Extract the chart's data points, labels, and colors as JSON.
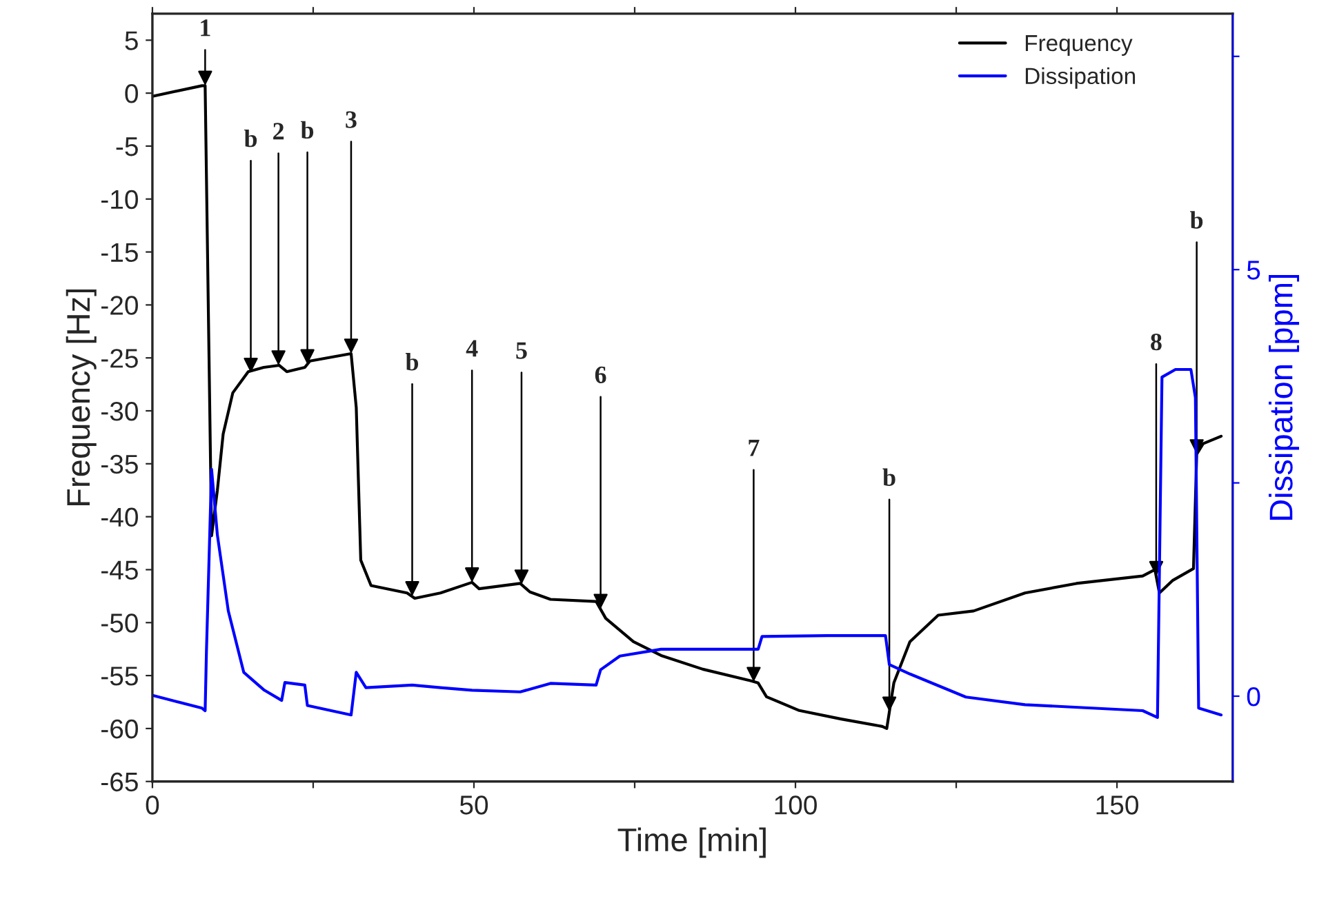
{
  "chart_data": {
    "type": "line",
    "xlabel": "Time [min]",
    "ylabel": "Frequency [Hz]",
    "y2label": "Dissipation [ppm]",
    "xlim": [
      0,
      168
    ],
    "xticks": [
      0,
      {
        "value": 25,
        "label": null
      },
      50,
      {
        "value": 75,
        "label": null
      },
      100,
      {
        "value": 125,
        "label": null
      },
      150
    ],
    "ylim": [
      -65,
      7.5
    ],
    "yticks": [
      -65,
      -60,
      -55,
      -50,
      -45,
      -40,
      -35,
      -30,
      -25,
      -20,
      -15,
      -10,
      -5,
      0,
      5
    ],
    "y2lim": [
      -1,
      8
    ],
    "y2ticks": [
      0,
      {
        "value": 2.5,
        "label": null
      },
      5,
      {
        "value": 7.5,
        "label": null
      }
    ],
    "legend": "top right",
    "grid": false,
    "series": [
      {
        "name": "Frequency",
        "color": "#000000",
        "x": [
          0,
          7.7,
          8.2,
          9.2,
          10.1,
          11,
          12.5,
          14.9,
          17.3,
          19.7,
          20.9,
          23.7,
          24.5,
          30.9,
          31.7,
          32.4,
          34,
          39.6,
          40.8,
          44.8,
          49.7,
          50.8,
          57.2,
          58.7,
          61.9,
          69,
          70.5,
          74.8,
          79.1,
          85.6,
          93.1,
          94.2,
          95.5,
          100.6,
          107.1,
          113.5,
          114.2,
          115.3,
          117.8,
          122.2,
          127.7,
          135.7,
          143.7,
          154,
          155.9,
          156.6,
          158.7,
          161.9,
          162.4,
          163.4,
          166.2
        ],
        "values": [
          -0.3,
          0.7,
          0.7,
          -41.8,
          -37.5,
          -32.2,
          -28.3,
          -26.3,
          -25.9,
          -25.7,
          -26.3,
          -25.9,
          -25.3,
          -24.6,
          -29.7,
          -44.1,
          -46.5,
          -47.2,
          -47.7,
          -47.2,
          -46.2,
          -46.8,
          -46.3,
          -47.1,
          -47.8,
          -48.0,
          -49.6,
          -51.8,
          -53.1,
          -54.4,
          -55.5,
          -55.7,
          -57.0,
          -58.3,
          -59.1,
          -59.8,
          -60.0,
          -55.7,
          -51.8,
          -49.3,
          -48.9,
          -47.2,
          -46.3,
          -45.6,
          -45.0,
          -47.2,
          -46.0,
          -44.9,
          -34.1,
          -33.1,
          -32.4
        ]
      },
      {
        "name": "Dissipation",
        "color": "#0000ff",
        "axis": "y2",
        "x": [
          0,
          7.7,
          8.2,
          8.4,
          9.2,
          10.1,
          11.8,
          14.2,
          17.4,
          20.1,
          20.6,
          23.7,
          24.1,
          30.9,
          31.7,
          33.2,
          40.4,
          44.8,
          49.7,
          57.2,
          61.9,
          69,
          69.7,
          72.7,
          79.1,
          94.2,
          94.8,
          104.9,
          114,
          114.6,
          117.8,
          126.5,
          135.7,
          154,
          156.3,
          157,
          159.1,
          161.5,
          162.2,
          162.7,
          166.2
        ],
        "values": [
          0.01,
          -0.14,
          -0.17,
          0.52,
          2.66,
          1.89,
          1.0,
          0.28,
          0.07,
          -0.05,
          0.16,
          0.13,
          -0.11,
          -0.22,
          0.28,
          0.1,
          0.13,
          0.1,
          0.07,
          0.05,
          0.15,
          0.13,
          0.31,
          0.47,
          0.55,
          0.55,
          0.7,
          0.71,
          0.71,
          0.37,
          0.26,
          -0.01,
          -0.1,
          -0.17,
          -0.25,
          3.74,
          3.83,
          3.83,
          3.5,
          -0.14,
          -0.22
        ]
      }
    ],
    "annotations": [
      {
        "text": "1",
        "x": 8.2,
        "y": 0.7
      },
      {
        "text": "b",
        "x": 15.3,
        "y": -26.4
      },
      {
        "text": "2",
        "x": 19.6,
        "y": -25.7
      },
      {
        "text": "b",
        "x": 24.1,
        "y": -25.6
      },
      {
        "text": "3",
        "x": 30.9,
        "y": -24.6
      },
      {
        "text": "b",
        "x": 40.4,
        "y": -47.5
      },
      {
        "text": "4",
        "x": 49.7,
        "y": -46.2
      },
      {
        "text": "5",
        "x": 57.4,
        "y": -46.4
      },
      {
        "text": "6",
        "x": 69.7,
        "y": -48.7
      },
      {
        "text": "7",
        "x": 93.5,
        "y": -55.6
      },
      {
        "text": "b",
        "x": 114.6,
        "y": -58.4
      },
      {
        "text": "8",
        "x": 156.1,
        "y": -45.6
      },
      {
        "text": "b",
        "x": 162.4,
        "y": -34.1
      }
    ]
  }
}
